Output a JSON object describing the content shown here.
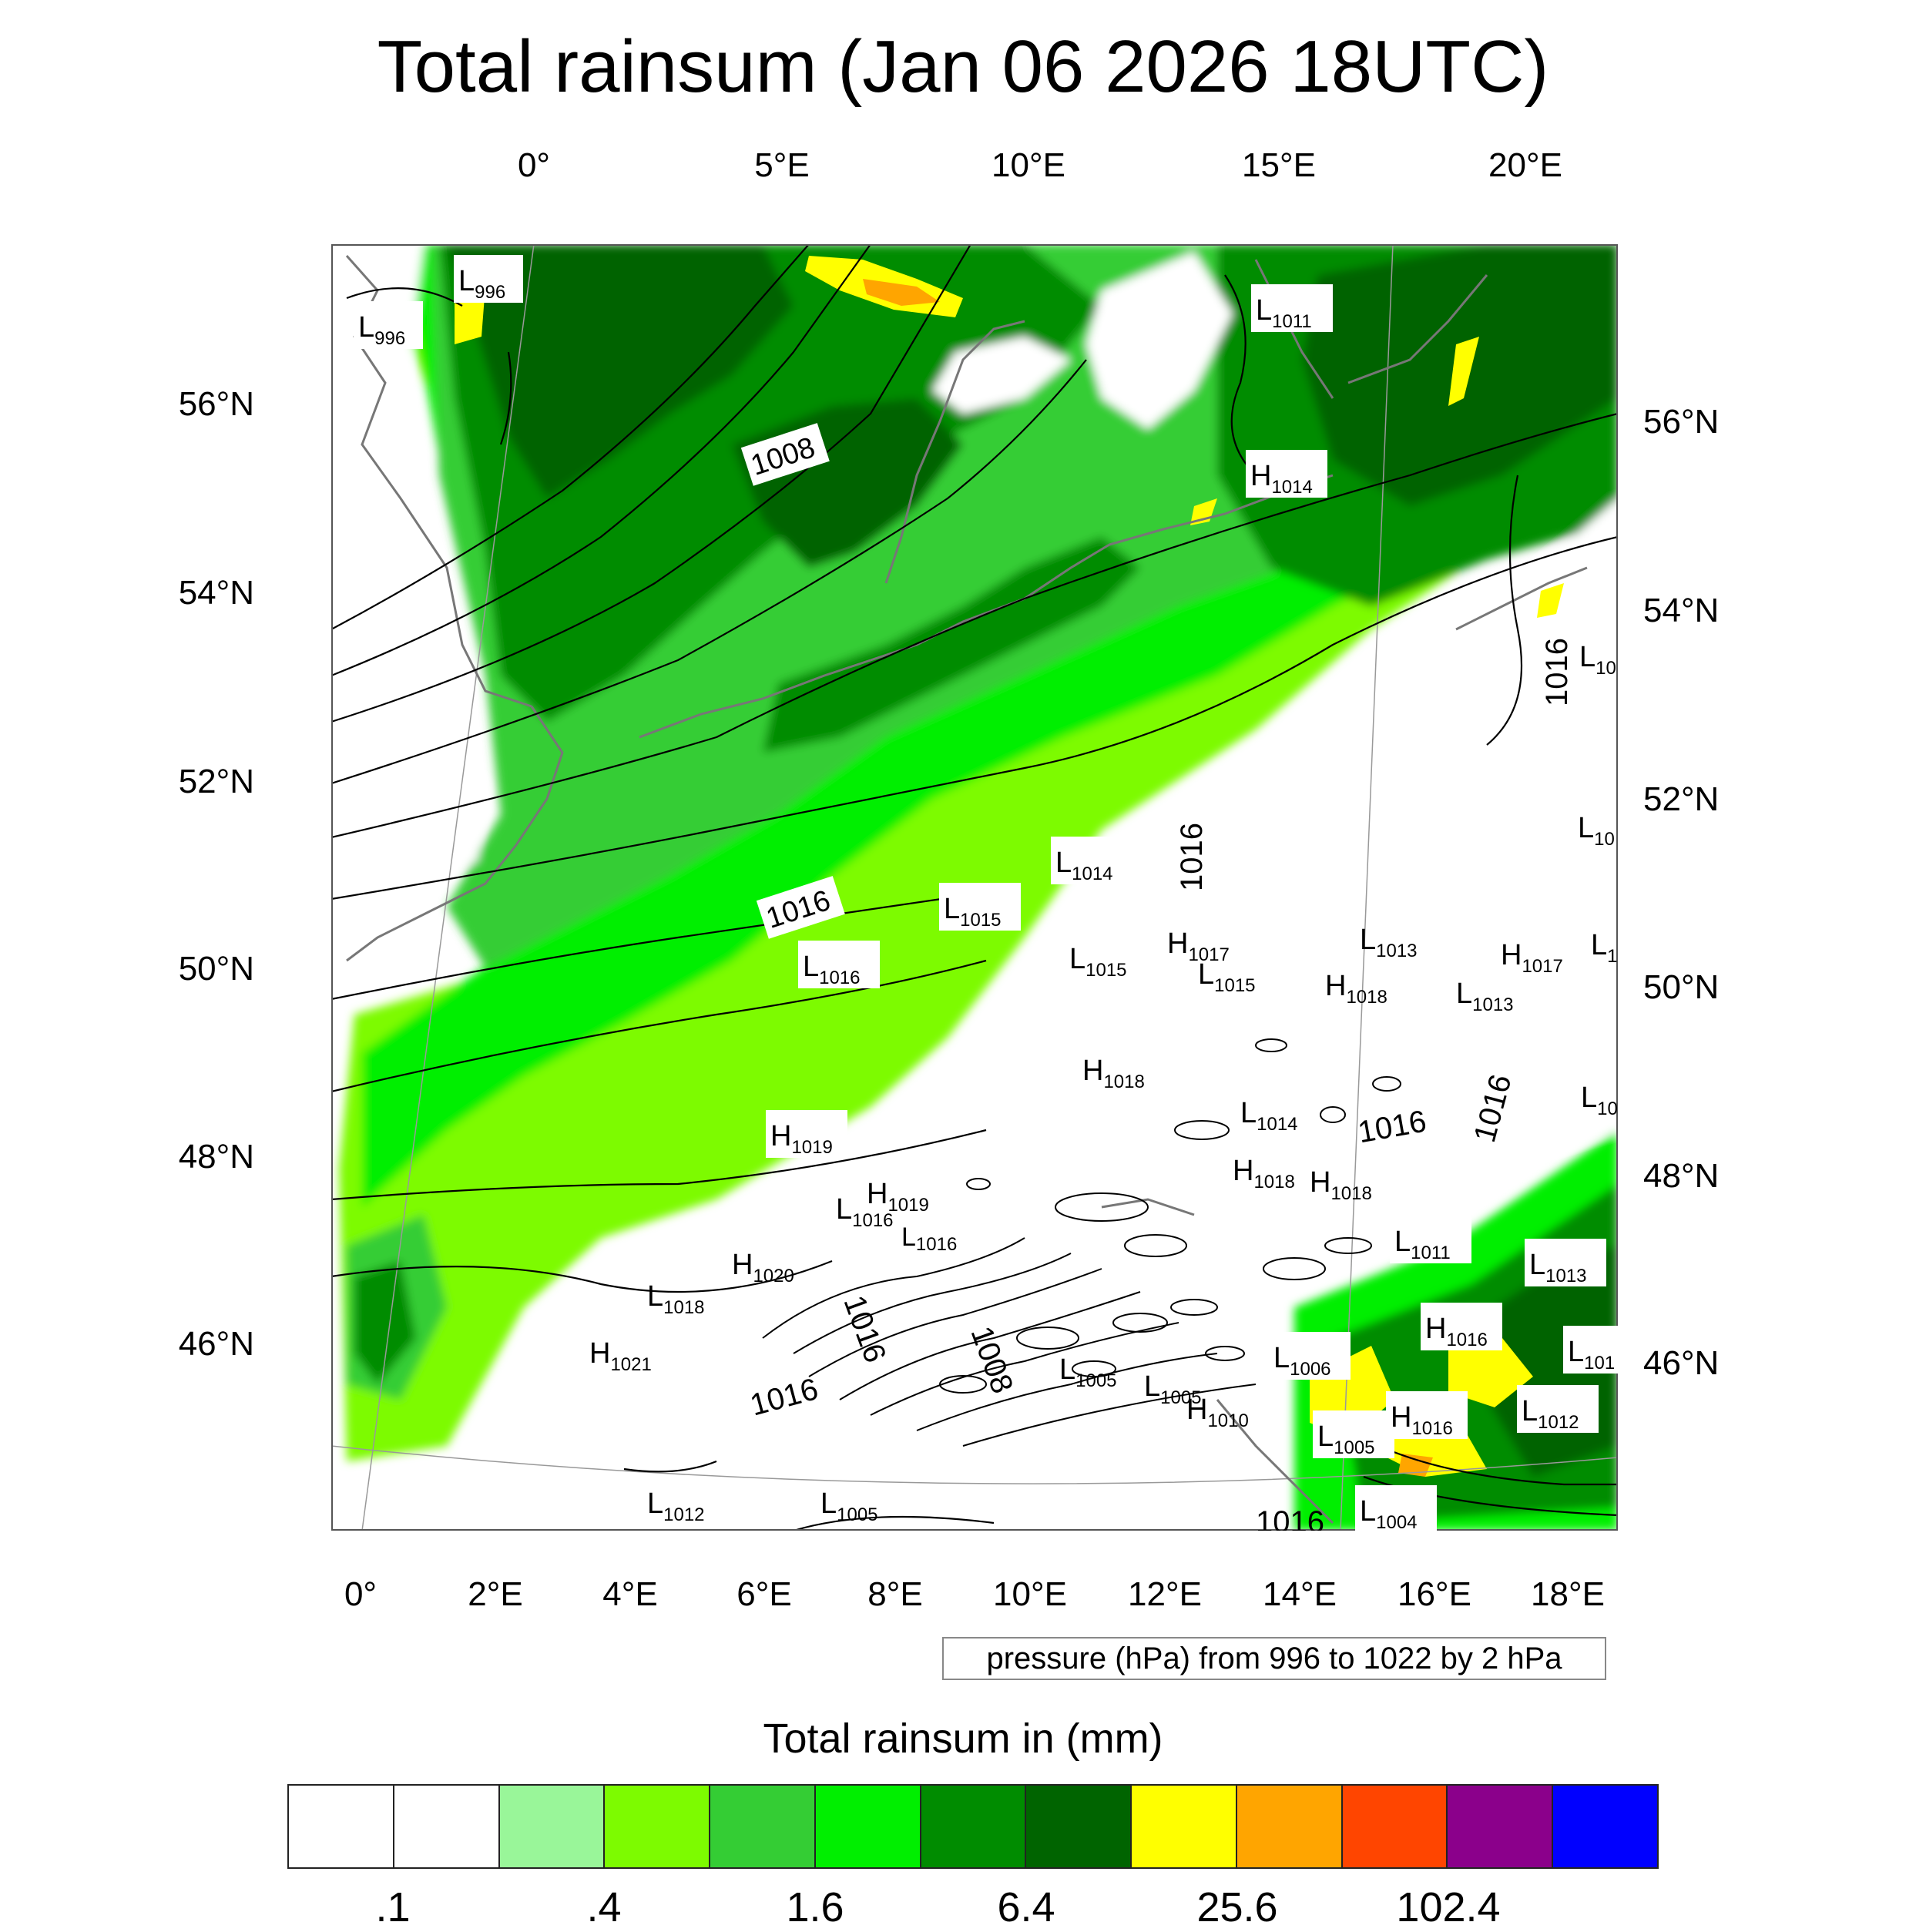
{
  "title": "Total rainsum (Jan 06 2026 18UTC)",
  "top_lon_labels": [
    "0°",
    "5°E",
    "10°E",
    "15°E",
    "20°E"
  ],
  "bottom_lon_labels": [
    "0°",
    "2°E",
    "4°E",
    "6°E",
    "8°E",
    "10°E",
    "12°E",
    "14°E",
    "16°E",
    "18°E"
  ],
  "left_lat_labels": [
    "56°N",
    "54°N",
    "52°N",
    "50°N",
    "48°N",
    "46°N"
  ],
  "right_lat_labels": [
    "56°N",
    "54°N",
    "52°N",
    "50°N",
    "48°N",
    "46°N"
  ],
  "pressure_info": "pressure (hPa) from 996 to 1022 by 2 hPa",
  "colorbar": {
    "title": "Total rainsum in (mm)",
    "labels": [
      ".1",
      ".4",
      "1.6",
      "6.4",
      "25.6",
      "102.4"
    ],
    "colors": [
      "#ffffff",
      "#ffffff",
      "#99f699",
      "#7dfb00",
      "#34cd34",
      "#00ef00",
      "#008c00",
      "#006400",
      "#ffff00",
      "#ffa500",
      "#ff4500",
      "#8b008b",
      "#0000ff"
    ]
  },
  "pressure_labels": [
    {
      "type": "L",
      "value": "996"
    },
    {
      "type": "L",
      "value": "996"
    },
    {
      "type": "L",
      "value": "1011"
    },
    {
      "type": "H",
      "value": "1014"
    },
    {
      "type": "",
      "value": "1008"
    },
    {
      "type": "",
      "value": "1016"
    },
    {
      "type": "L",
      "value": "1014"
    },
    {
      "type": "L",
      "value": "1015"
    },
    {
      "type": "L",
      "value": "1016"
    },
    {
      "type": "L",
      "value": "1015"
    },
    {
      "type": "H",
      "value": "1017"
    },
    {
      "type": "L",
      "value": "1015"
    },
    {
      "type": "L",
      "value": "1013"
    },
    {
      "type": "H",
      "value": "1018"
    },
    {
      "type": "L",
      "value": "1013"
    },
    {
      "type": "H",
      "value": "1017"
    },
    {
      "type": "H",
      "value": "1018"
    },
    {
      "type": "L",
      "value": "1014"
    },
    {
      "type": "",
      "value": "1016"
    },
    {
      "type": "H",
      "value": "1019"
    },
    {
      "type": "H",
      "value": "1019"
    },
    {
      "type": "L",
      "value": "1016"
    },
    {
      "type": "L",
      "value": "1016"
    },
    {
      "type": "H",
      "value": "1018"
    },
    {
      "type": "H",
      "value": "1018"
    },
    {
      "type": "H",
      "value": "1020"
    },
    {
      "type": "L",
      "value": "1018"
    },
    {
      "type": "L",
      "value": "1011"
    },
    {
      "type": "L",
      "value": "1013"
    },
    {
      "type": "H",
      "value": "1021"
    },
    {
      "type": "H",
      "value": "1016"
    },
    {
      "type": "L",
      "value": "1006"
    },
    {
      "type": "L",
      "value": "1005"
    },
    {
      "type": "L",
      "value": "1005"
    },
    {
      "type": "H",
      "value": "1010"
    },
    {
      "type": "L",
      "value": "1012"
    },
    {
      "type": "L",
      "value": "1005"
    },
    {
      "type": "H",
      "value": "1016"
    },
    {
      "type": "L",
      "value": "1012"
    },
    {
      "type": "L",
      "value": "1005"
    },
    {
      "type": "L",
      "value": "1004"
    },
    {
      "type": "L",
      "value": "10"
    },
    {
      "type": "L",
      "value": "10"
    },
    {
      "type": "L",
      "value": "101"
    },
    {
      "type": "L",
      "value": "10"
    },
    {
      "type": "L",
      "value": "1"
    },
    {
      "type": "",
      "value": "1016"
    },
    {
      "type": "",
      "value": "1016"
    },
    {
      "type": "",
      "value": "1016"
    },
    {
      "type": "",
      "value": "1016"
    },
    {
      "type": "",
      "value": "1016"
    },
    {
      "type": "",
      "value": "1016"
    },
    {
      "type": "",
      "value": "1008"
    }
  ]
}
